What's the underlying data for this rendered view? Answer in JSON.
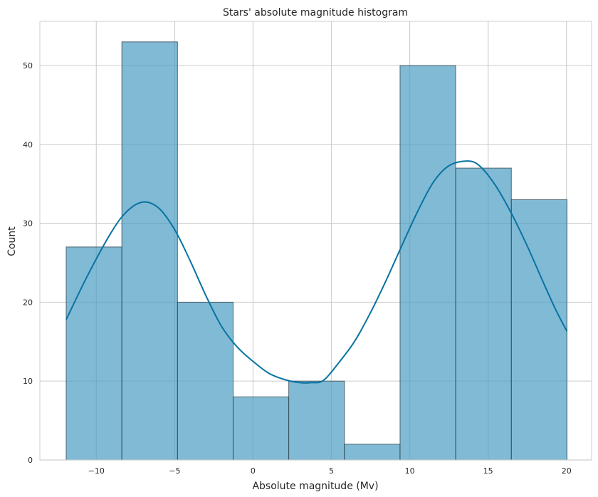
{
  "chart_data": {
    "type": "bar",
    "title": "Stars' absolute magnitude histogram",
    "xlabel": "Absolute magnitude (Mv)",
    "ylabel": "Count",
    "xlim": [
      -13.6,
      21.6
    ],
    "ylim": [
      0,
      55.6
    ],
    "xticks": [
      -10,
      -5,
      0,
      5,
      10,
      15,
      20
    ],
    "xtick_labels": [
      "−10",
      "−5",
      "0",
      "5",
      "10",
      "15",
      "20"
    ],
    "yticks": [
      0,
      10,
      20,
      30,
      40,
      50
    ],
    "ytick_labels": [
      "0",
      "10",
      "20",
      "30",
      "40",
      "50"
    ],
    "grid": true,
    "bins": [
      {
        "x0": -11.92,
        "x1": -8.37,
        "count": 27
      },
      {
        "x0": -8.37,
        "x1": -4.82,
        "count": 53
      },
      {
        "x0": -4.82,
        "x1": -1.27,
        "count": 20
      },
      {
        "x0": -1.27,
        "x1": 2.28,
        "count": 8
      },
      {
        "x0": 2.28,
        "x1": 5.83,
        "count": 10
      },
      {
        "x0": 5.83,
        "x1": 9.38,
        "count": 2
      },
      {
        "x0": 9.38,
        "x1": 12.93,
        "count": 50
      },
      {
        "x0": 12.93,
        "x1": 16.48,
        "count": 37
      },
      {
        "x0": 16.48,
        "x1": 20.03,
        "count": 33
      }
    ],
    "kde": {
      "x": [
        -11.92,
        -10.5,
        -9,
        -8,
        -7,
        -6,
        -5,
        -4,
        -3,
        -2,
        -1,
        0,
        1,
        2,
        3,
        3.7,
        4.5,
        5.5,
        6.5,
        7.5,
        8.5,
        9.5,
        10.5,
        11.5,
        12.5,
        13.7,
        14.5,
        15.5,
        16.5,
        17.5,
        18.5,
        19.3,
        20.03
      ],
      "y": [
        17.8,
        23.6,
        29.0,
        31.6,
        32.7,
        31.9,
        29.2,
        25.2,
        20.8,
        16.9,
        14.3,
        12.5,
        11.0,
        10.2,
        9.8,
        9.8,
        10.1,
        12.4,
        15.1,
        18.7,
        22.8,
        27.2,
        31.5,
        35.2,
        37.3,
        37.9,
        37.2,
        34.7,
        31.2,
        27.1,
        22.6,
        19.1,
        16.3
      ]
    },
    "bar_color": "#4c9dc2",
    "line_color": "#0873a3",
    "grid_color": "#d0d0d0"
  }
}
